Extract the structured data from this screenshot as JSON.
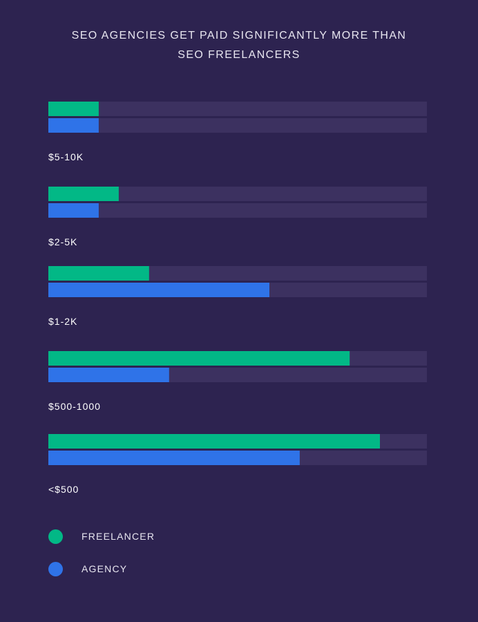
{
  "chart_data": {
    "type": "bar",
    "orientation": "horizontal",
    "title_lines": [
      "SEO AGENCIES GET PAID SIGNIFICANTLY MORE THAN",
      "SEO FREELANCERS"
    ],
    "categories": [
      "$5-10K",
      "$2-5K",
      "$1-2K",
      "$500-1000",
      "<$500"
    ],
    "series": [
      {
        "name": "FREELANCER",
        "color": "#02b886",
        "values": [
          13.3,
          18.6,
          26.6,
          79.6,
          87.6
        ]
      },
      {
        "name": "AGENCY",
        "color": "#2f73e8",
        "values": [
          13.3,
          13.3,
          58.4,
          31.9,
          66.4
        ]
      }
    ],
    "xlim": [
      0,
      100
    ],
    "track_color": "#3c3160",
    "grid": false,
    "legend_placement": "bottom-left"
  }
}
